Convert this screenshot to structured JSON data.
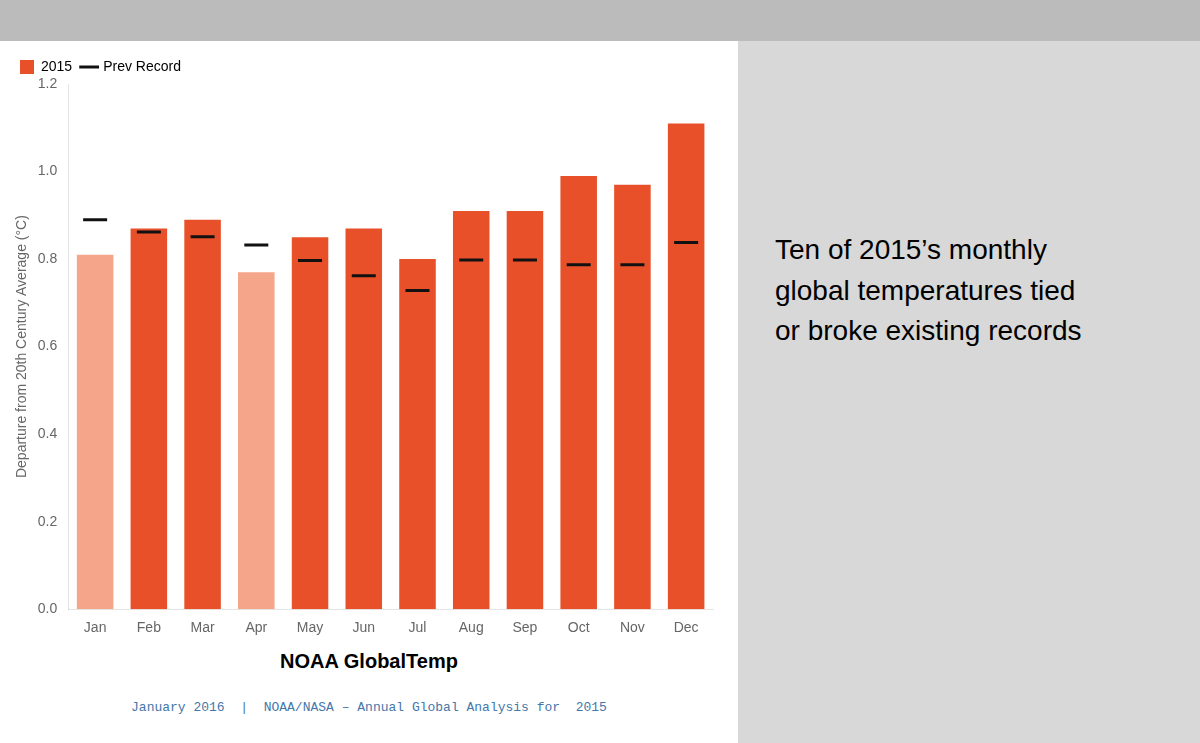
{
  "chart_data": {
    "type": "bar",
    "subtitle": "NOAA GlobalTemp",
    "annotations": [
      "January 2016  |  NOAA/NASA – Annual Global Analysis for  2015",
      "Ten of 2015’s monthly\nglobal temperatures tied\nor broke existing records"
    ],
    "ylabel": "Departure from 20th Century Average (°C)",
    "categories": [
      "Jan",
      "Feb",
      "Mar",
      "Apr",
      "May",
      "Jun",
      "Jul",
      "Aug",
      "Sep",
      "Oct",
      "Nov",
      "Dec"
    ],
    "series": [
      {
        "name": "2015",
        "type": "bar",
        "color": "#e8502a",
        "colors": [
          "#f5a58a",
          "#e8502a",
          "#e8502a",
          "#f5a58a",
          "#e8502a",
          "#e8502a",
          "#e8502a",
          "#e8502a",
          "#e8502a",
          "#e8502a",
          "#e8502a",
          "#e8502a"
        ],
        "values": [
          0.81,
          0.87,
          0.89,
          0.77,
          0.85,
          0.87,
          0.8,
          0.91,
          0.91,
          0.99,
          0.97,
          1.11
        ]
      },
      {
        "name": "Prev Record",
        "type": "line",
        "color": "#111111",
        "marker": "dash",
        "line_style": "none",
        "values": [
          0.89,
          0.862,
          0.851,
          0.832,
          0.797,
          0.762,
          0.728,
          0.798,
          0.798,
          0.787,
          0.787,
          0.838
        ]
      }
    ],
    "ylim": [
      0.0,
      1.2
    ],
    "yticks": [
      {
        "value": 0.0,
        "label": "0.0"
      },
      0.2,
      0.4,
      0.6,
      0.8,
      {
        "value": 1.0,
        "label": "1.0"
      },
      1.2
    ],
    "grid": false,
    "legend": "top"
  }
}
